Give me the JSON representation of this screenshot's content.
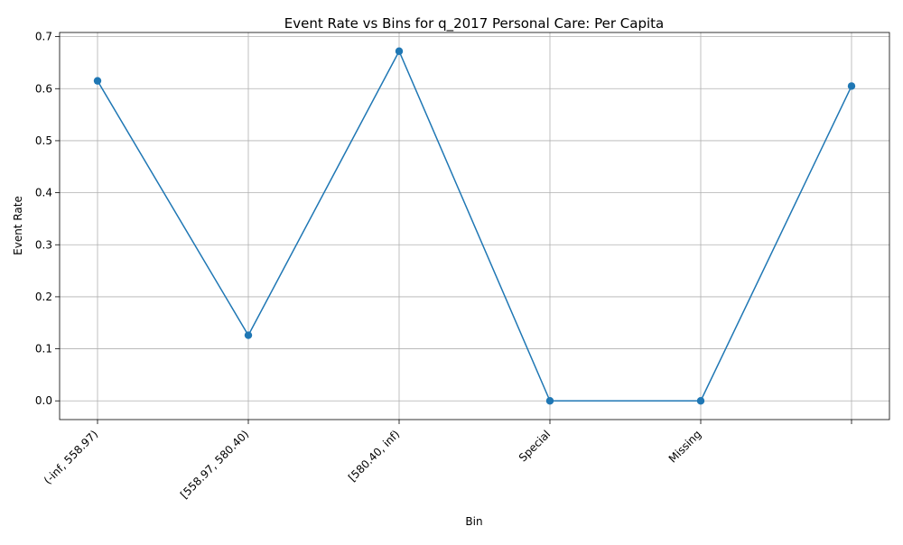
{
  "chart_data": {
    "type": "line",
    "title": "Event Rate vs Bins for q_2017 Personal Care: Per Capita",
    "xlabel": "Bin",
    "ylabel": "Event Rate",
    "categories": [
      "(-inf, 558.97)",
      "[558.97, 580.40)",
      "[580.40, inf)",
      "Special",
      "Missing",
      ""
    ],
    "series": [
      {
        "values": [
          0.615,
          0.126,
          0.672,
          0.0,
          0.0,
          0.605
        ]
      }
    ],
    "ylim": [
      -0.036,
      0.708
    ],
    "yticks": [
      0.0,
      0.1,
      0.2,
      0.3,
      0.4,
      0.5,
      0.6,
      0.7
    ],
    "ytick_labels": [
      "0.0",
      "0.1",
      "0.2",
      "0.3",
      "0.4",
      "0.5",
      "0.6",
      "0.7"
    ],
    "grid": true,
    "line_color": "#1f77b4",
    "marker": "circle"
  }
}
